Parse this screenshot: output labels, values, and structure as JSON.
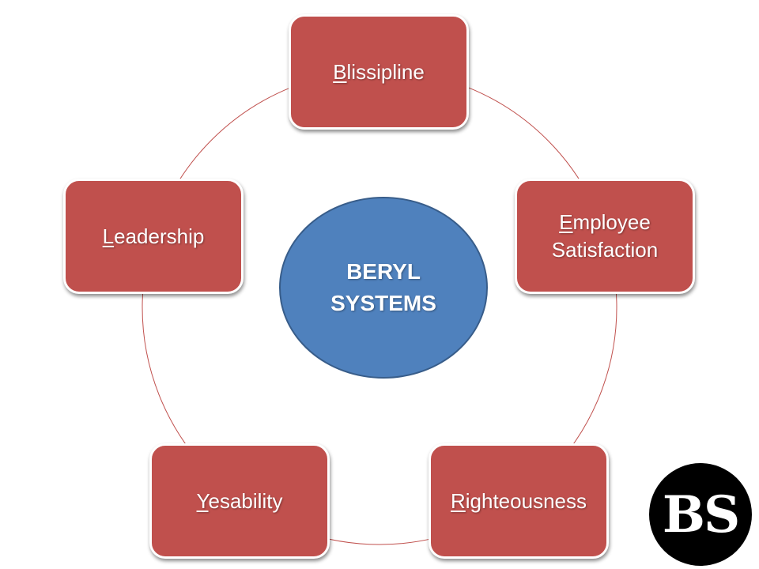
{
  "center": {
    "line1": "BERYL",
    "line2": "SYSTEMS"
  },
  "nodes": {
    "blissipline": {
      "first": "B",
      "rest": "lissipline"
    },
    "employee": {
      "first": "E",
      "rest": "mployee",
      "line2": "Satisfaction"
    },
    "leadership": {
      "first": "L",
      "rest": "eadership"
    },
    "yesability": {
      "first": "Y",
      "rest": "esability"
    },
    "righteousness": {
      "first": "R",
      "rest": "ighteousness"
    }
  },
  "logo": {
    "text": "BS"
  },
  "colors": {
    "node_fill": "#c0504d",
    "node_border": "#ffffff",
    "center_fill": "#4f81bd",
    "center_border": "#385d8a",
    "ring_stroke": "#c0504d",
    "logo_fill": "#000000"
  }
}
